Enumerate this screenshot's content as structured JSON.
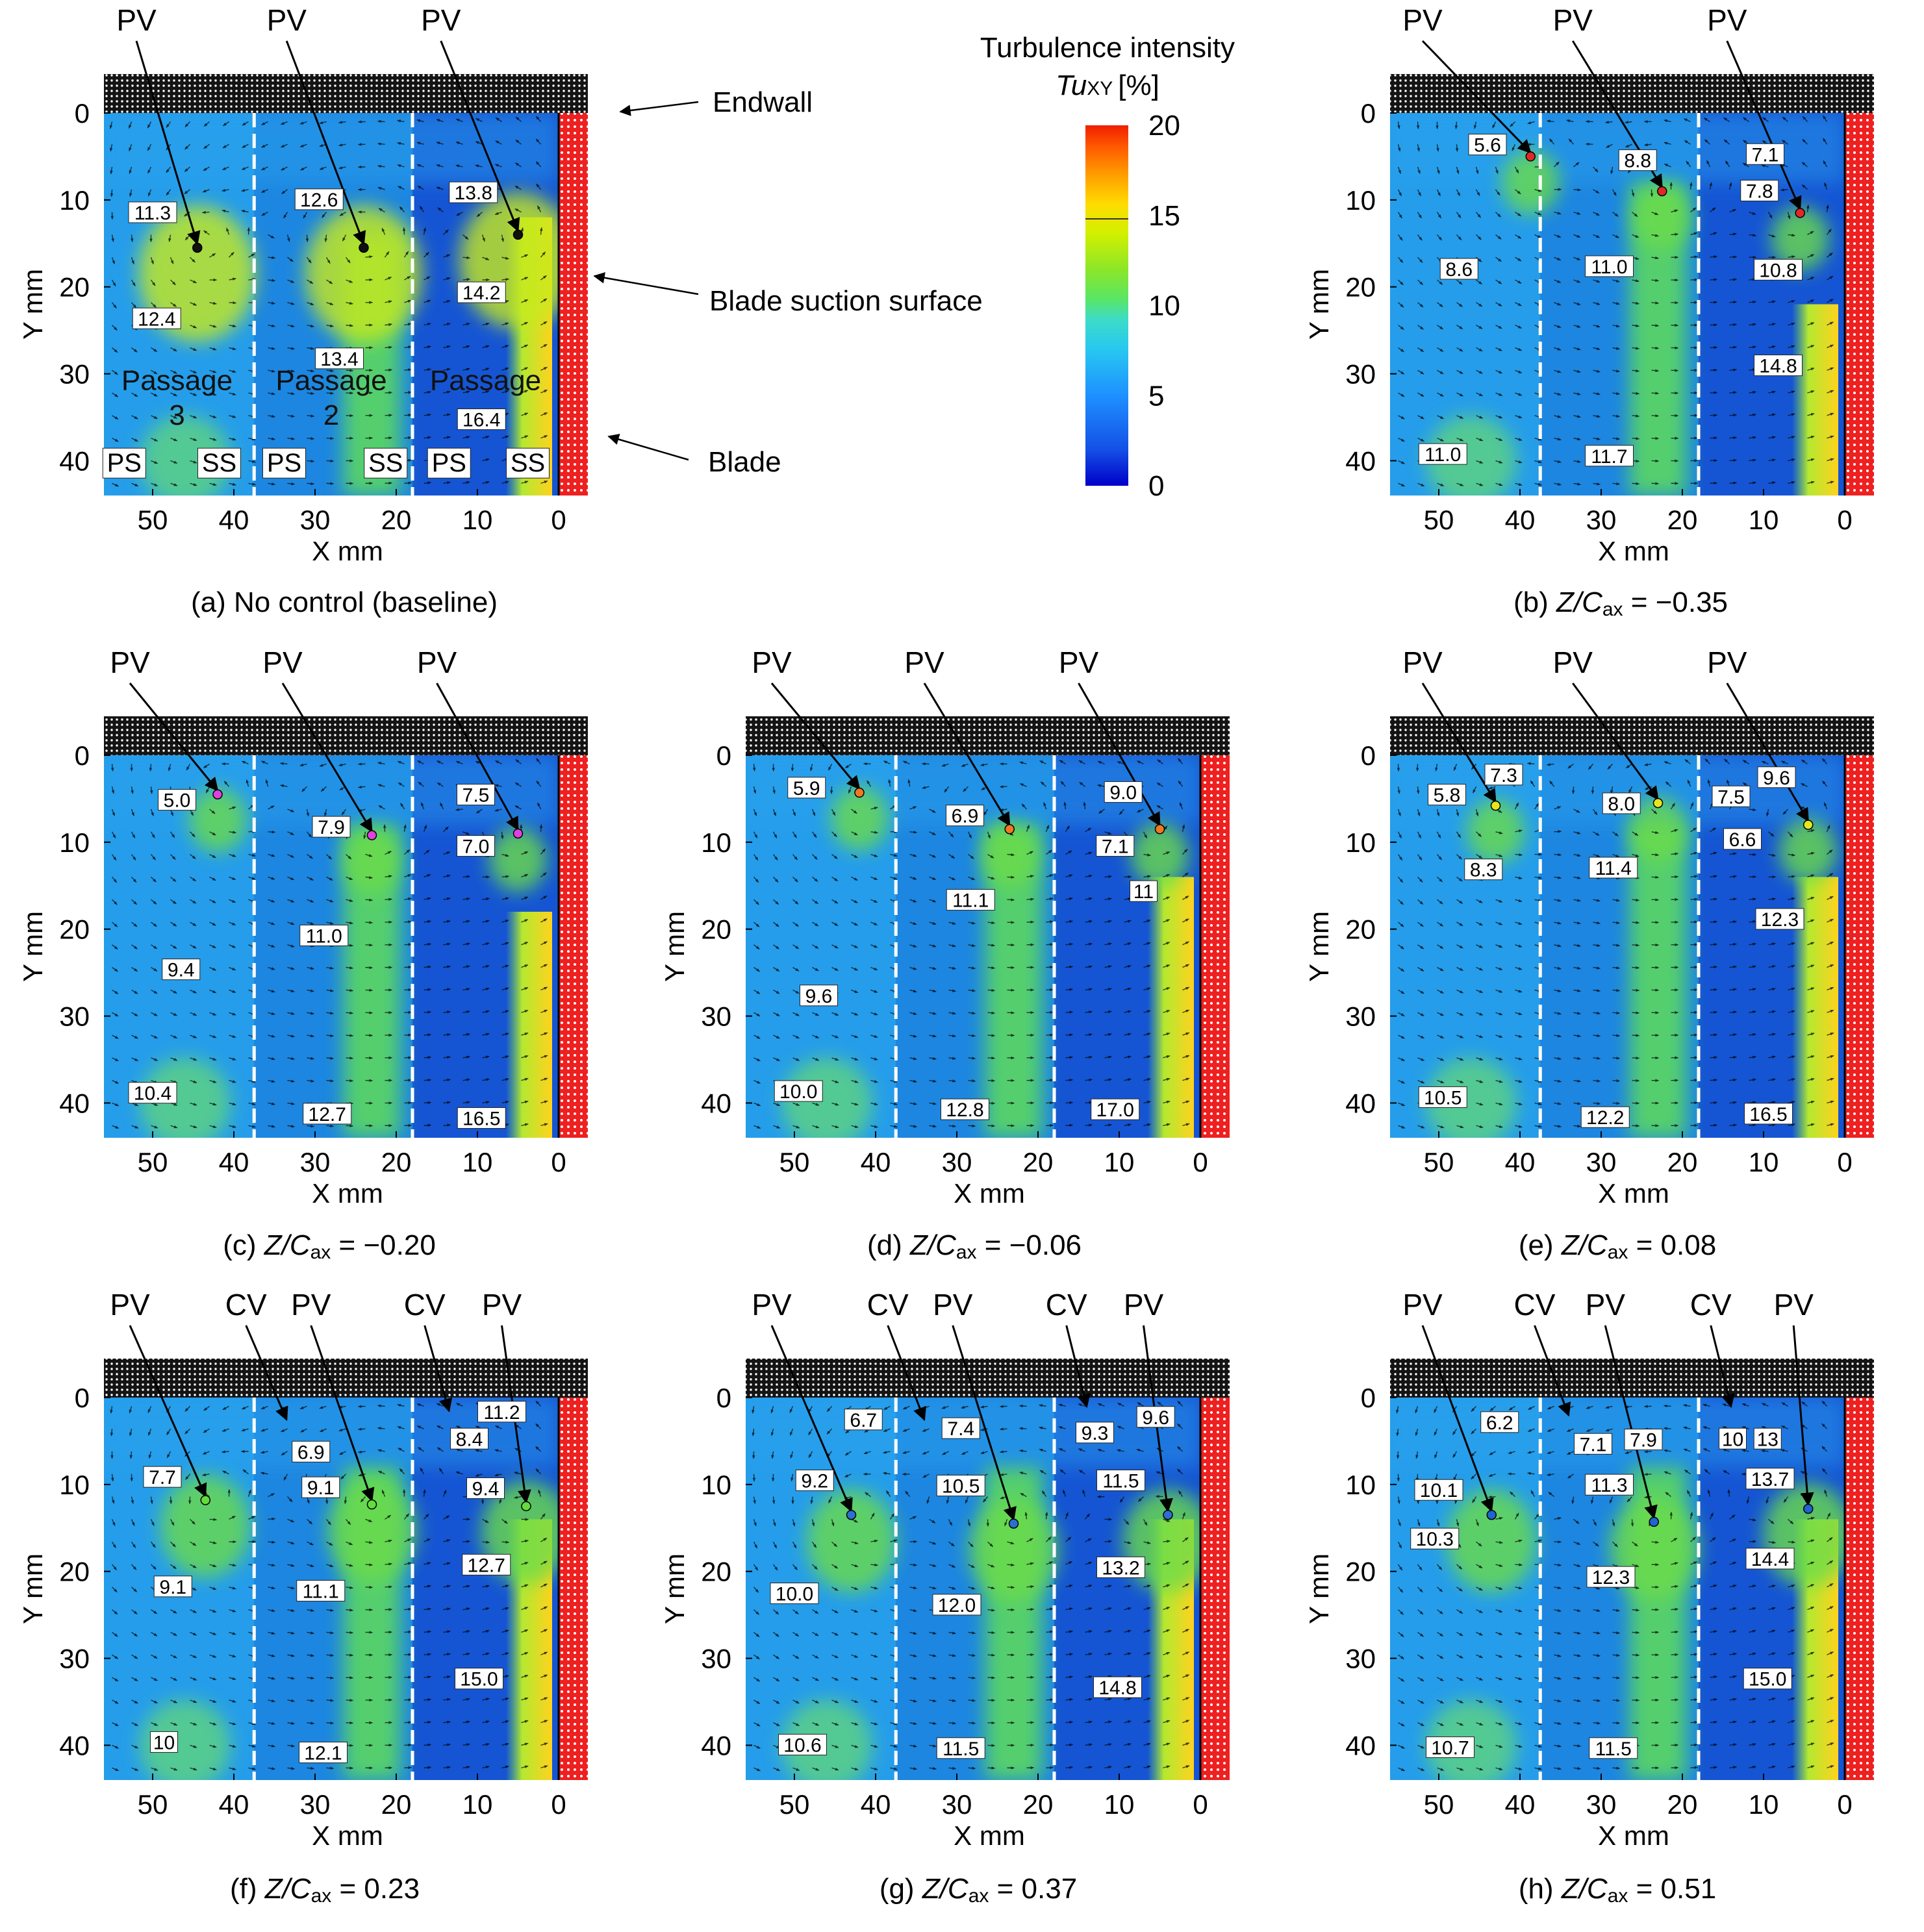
{
  "figure": {
    "axis_titles": {
      "x": "X mm",
      "y": "Y mm"
    },
    "x_ticks": [
      50,
      40,
      30,
      20,
      10,
      0
    ],
    "y_ticks": [
      0,
      10,
      20,
      30,
      40
    ],
    "colorbar": {
      "title_line1": "Turbulence intensity",
      "title_line2_symbol": "Tu",
      "title_line2_sub": "XY",
      "title_line2_unit": "[%]",
      "ticks": [
        20,
        15,
        10,
        5,
        0
      ],
      "range": [
        0,
        20
      ],
      "colors": [
        "#0000c8",
        "#1450e6",
        "#1e90ff",
        "#28c8f0",
        "#3cdcc8",
        "#5ae664",
        "#8ce628",
        "#d2f000",
        "#ffdc00",
        "#ffa000",
        "#ff5a00",
        "#f01e00"
      ]
    },
    "annotation_labels": {
      "endwall": "Endwall",
      "suction": "Blade suction surface",
      "blade": "Blade"
    },
    "colors": {
      "flow_blue": "#1878dc",
      "flow_deep": "#1240c8",
      "blade_red": "#ee2020",
      "endwall_black": "#141414"
    }
  },
  "chart_data": [
    {
      "type": "heatmap",
      "panel": "a",
      "caption": {
        "text": "(a) No control (baseline)"
      },
      "xlim": [
        56,
        0
      ],
      "ylim": [
        0,
        44
      ],
      "vortices": [
        {
          "name": "PV",
          "x": 44.5,
          "y": 15.5,
          "color": "#111111"
        },
        {
          "name": "PV",
          "x": 24,
          "y": 15.5,
          "color": "#111111"
        },
        {
          "name": "PV",
          "x": 5,
          "y": 14,
          "color": "#111111"
        }
      ],
      "values": [
        {
          "text": "11.3",
          "x": 50,
          "y": 11.5
        },
        {
          "text": "12.4",
          "x": 49.5,
          "y": 23.7
        },
        {
          "text": "12.6",
          "x": 29.5,
          "y": 10
        },
        {
          "text": "13.4",
          "x": 27,
          "y": 28.3
        },
        {
          "text": "13.8",
          "x": 10.5,
          "y": 9.2
        },
        {
          "text": "14.2",
          "x": 9.5,
          "y": 20.7
        },
        {
          "text": "16.4",
          "x": 9.5,
          "y": 35.3
        }
      ],
      "region_labels": [
        {
          "text": "Passage",
          "x": 47,
          "y": 30.8
        },
        {
          "text": "3",
          "x": 47,
          "y": 34.8
        },
        {
          "text": "Passage",
          "x": 28,
          "y": 30.8
        },
        {
          "text": "2",
          "x": 28,
          "y": 34.8
        },
        {
          "text": "Passage",
          "x": 9,
          "y": 30.8
        },
        {
          "text": "PS",
          "x": 53.5,
          "y": 40.8
        },
        {
          "text": "SS",
          "x": 41.8,
          "y": 40.8
        },
        {
          "text": "PS",
          "x": 33.8,
          "y": 40.8
        },
        {
          "text": "SS",
          "x": 21.3,
          "y": 40.8
        },
        {
          "text": "PS",
          "x": 13.5,
          "y": 40.8
        },
        {
          "text": "SS",
          "x": 3.8,
          "y": 40.8
        }
      ]
    },
    {
      "type": "heatmap",
      "panel": "b",
      "caption": {
        "prefix": "(b) ",
        "zc": "Z/C",
        "sub": "ax",
        "value": " = −0.35"
      },
      "xlim": [
        56,
        0
      ],
      "ylim": [
        0,
        44
      ],
      "vortices": [
        {
          "name": "PV",
          "x": 38.7,
          "y": 5,
          "color": "#e02828"
        },
        {
          "name": "PV",
          "x": 22.5,
          "y": 9,
          "color": "#e02828"
        },
        {
          "name": "PV",
          "x": 5.5,
          "y": 11.5,
          "color": "#e02828"
        }
      ],
      "values": [
        {
          "text": "5.6",
          "x": 44,
          "y": 3.7
        },
        {
          "text": "8.6",
          "x": 47.5,
          "y": 18
        },
        {
          "text": "11.0",
          "x": 49.5,
          "y": 39.3
        },
        {
          "text": "8.8",
          "x": 25.5,
          "y": 5.5
        },
        {
          "text": "11.0",
          "x": 29,
          "y": 17.7
        },
        {
          "text": "11.7",
          "x": 29,
          "y": 39.5
        },
        {
          "text": "7.1",
          "x": 9.8,
          "y": 4.8
        },
        {
          "text": "7.8",
          "x": 10.5,
          "y": 9
        },
        {
          "text": "10.8",
          "x": 8.2,
          "y": 18.1
        },
        {
          "text": "14.8",
          "x": 8.2,
          "y": 29.1
        }
      ]
    },
    {
      "type": "heatmap",
      "panel": "c",
      "caption": {
        "prefix": "(c) ",
        "zc": "Z/C",
        "sub": "ax",
        "value": " = −0.20"
      },
      "xlim": [
        56,
        0
      ],
      "ylim": [
        0,
        44
      ],
      "vortices": [
        {
          "name": "PV",
          "x": 42,
          "y": 4.5,
          "color": "#e040e0"
        },
        {
          "name": "PV",
          "x": 23,
          "y": 9.2,
          "color": "#e040e0"
        },
        {
          "name": "PV",
          "x": 5,
          "y": 9,
          "color": "#e040e0"
        }
      ],
      "values": [
        {
          "text": "5.0",
          "x": 47,
          "y": 5.2
        },
        {
          "text": "9.4",
          "x": 46.5,
          "y": 24.7
        },
        {
          "text": "10.4",
          "x": 50,
          "y": 38.9
        },
        {
          "text": "7.9",
          "x": 28,
          "y": 8.3
        },
        {
          "text": "11.0",
          "x": 28.9,
          "y": 20.8
        },
        {
          "text": "12.7",
          "x": 28.5,
          "y": 41.3
        },
        {
          "text": "7.5",
          "x": 10.2,
          "y": 4.6
        },
        {
          "text": "7.0",
          "x": 10.2,
          "y": 10.5
        },
        {
          "text": "16.5",
          "x": 9.5,
          "y": 41.8
        }
      ]
    },
    {
      "type": "heatmap",
      "panel": "d",
      "caption": {
        "prefix": "(d) ",
        "zc": "Z/C",
        "sub": "ax",
        "value": " = −0.06"
      },
      "xlim": [
        56,
        0
      ],
      "ylim": [
        0,
        44
      ],
      "vortices": [
        {
          "name": "PV",
          "x": 42,
          "y": 4.3,
          "color": "#f07820"
        },
        {
          "name": "PV",
          "x": 23.5,
          "y": 8.5,
          "color": "#f07820"
        },
        {
          "name": "PV",
          "x": 5,
          "y": 8.5,
          "color": "#f07820"
        }
      ],
      "values": [
        {
          "text": "5.9",
          "x": 48.5,
          "y": 3.8
        },
        {
          "text": "9.6",
          "x": 47,
          "y": 27.7
        },
        {
          "text": "10.0",
          "x": 49.5,
          "y": 38.7
        },
        {
          "text": "6.9",
          "x": 29,
          "y": 7
        },
        {
          "text": "11.1",
          "x": 28.3,
          "y": 16.7
        },
        {
          "text": "12.8",
          "x": 29,
          "y": 40.8
        },
        {
          "text": "9.0",
          "x": 9.5,
          "y": 4.3
        },
        {
          "text": "7.1",
          "x": 10.5,
          "y": 10.5
        },
        {
          "text": "11",
          "x": 7,
          "y": 15.7
        },
        {
          "text": "17.0",
          "x": 10.5,
          "y": 40.8
        }
      ]
    },
    {
      "type": "heatmap",
      "panel": "e",
      "caption": {
        "prefix": "(e) ",
        "zc": "Z/C",
        "sub": "ax",
        "value": " = 0.08"
      },
      "xlim": [
        56,
        0
      ],
      "ylim": [
        0,
        44
      ],
      "vortices": [
        {
          "name": "PV",
          "x": 43,
          "y": 5.8,
          "color": "#e6e61e"
        },
        {
          "name": "PV",
          "x": 23,
          "y": 5.5,
          "color": "#e6e61e"
        },
        {
          "name": "PV",
          "x": 4.5,
          "y": 8,
          "color": "#e6e61e"
        }
      ],
      "values": [
        {
          "text": "5.8",
          "x": 49,
          "y": 4.6
        },
        {
          "text": "7.3",
          "x": 42,
          "y": 2.3
        },
        {
          "text": "8.3",
          "x": 44.5,
          "y": 13.2
        },
        {
          "text": "10.5",
          "x": 49.5,
          "y": 39.4
        },
        {
          "text": "8.0",
          "x": 27.5,
          "y": 5.6
        },
        {
          "text": "11.4",
          "x": 28.5,
          "y": 13
        },
        {
          "text": "12.2",
          "x": 29.5,
          "y": 41.7
        },
        {
          "text": "7.5",
          "x": 14,
          "y": 4.8
        },
        {
          "text": "6.6",
          "x": 12.6,
          "y": 9.7
        },
        {
          "text": "9.6",
          "x": 8.4,
          "y": 2.6
        },
        {
          "text": "12.3",
          "x": 8,
          "y": 18.9
        },
        {
          "text": "16.5",
          "x": 9.4,
          "y": 41.3
        }
      ]
    },
    {
      "type": "heatmap",
      "panel": "f",
      "caption": {
        "prefix": "(f) ",
        "zc": "Z/C",
        "sub": "ax",
        "value": " = 0.23"
      },
      "xlim": [
        56,
        0
      ],
      "ylim": [
        0,
        44
      ],
      "vortices": [
        {
          "name": "PV",
          "x": 43.5,
          "y": 11.8,
          "color": "#64dc3c"
        },
        {
          "name": "PV",
          "x": 23,
          "y": 12.3,
          "color": "#64dc3c"
        },
        {
          "name": "PV",
          "x": 4,
          "y": 12.5,
          "color": "#64dc3c"
        }
      ],
      "cv_arrows": [
        {
          "name": "CV",
          "x": 33.5,
          "y": 3
        },
        {
          "name": "CV",
          "x": 13.5,
          "y": 2
        }
      ],
      "values": [
        {
          "text": "7.7",
          "x": 48.8,
          "y": 9.2
        },
        {
          "text": "9.1",
          "x": 47.5,
          "y": 21.8
        },
        {
          "text": "10",
          "x": 48.6,
          "y": 39.7
        },
        {
          "text": "6.9",
          "x": 30.5,
          "y": 6.3
        },
        {
          "text": "9.1",
          "x": 29.3,
          "y": 10.4
        },
        {
          "text": "11.1",
          "x": 29.3,
          "y": 22.3
        },
        {
          "text": "12.1",
          "x": 29,
          "y": 40.9
        },
        {
          "text": "8.4",
          "x": 11,
          "y": 4.8
        },
        {
          "text": "11.2",
          "x": 7,
          "y": 1.7
        },
        {
          "text": "9.4",
          "x": 9,
          "y": 10.5
        },
        {
          "text": "12.7",
          "x": 8.9,
          "y": 19.3
        },
        {
          "text": "15.0",
          "x": 9.8,
          "y": 32.4
        }
      ]
    },
    {
      "type": "heatmap",
      "panel": "g",
      "caption": {
        "prefix": "(g) ",
        "zc": "Z/C",
        "sub": "ax",
        "value": " = 0.37"
      },
      "xlim": [
        56,
        0
      ],
      "ylim": [
        0,
        44
      ],
      "vortices": [
        {
          "name": "PV",
          "x": 43,
          "y": 13.5,
          "color": "#2d6ed2"
        },
        {
          "name": "PV",
          "x": 23,
          "y": 14.5,
          "color": "#2d6ed2"
        },
        {
          "name": "PV",
          "x": 4,
          "y": 13.5,
          "color": "#2d6ed2"
        }
      ],
      "cv_arrows": [
        {
          "name": "CV",
          "x": 34,
          "y": 3
        },
        {
          "name": "CV",
          "x": 14,
          "y": 1.5
        }
      ],
      "values": [
        {
          "text": "9.2",
          "x": 47.5,
          "y": 9.6
        },
        {
          "text": "10.0",
          "x": 50,
          "y": 22.6
        },
        {
          "text": "10.6",
          "x": 49,
          "y": 40
        },
        {
          "text": "6.7",
          "x": 41.5,
          "y": 2.6
        },
        {
          "text": "7.4",
          "x": 29.5,
          "y": 3.6
        },
        {
          "text": "10.5",
          "x": 29.5,
          "y": 10.2
        },
        {
          "text": "12.0",
          "x": 30,
          "y": 23.9
        },
        {
          "text": "11.5",
          "x": 29.5,
          "y": 40.4
        },
        {
          "text": "9.3",
          "x": 13,
          "y": 4.1
        },
        {
          "text": "9.6",
          "x": 5.5,
          "y": 2.3
        },
        {
          "text": "11.5",
          "x": 9.8,
          "y": 9.6
        },
        {
          "text": "13.2",
          "x": 9.8,
          "y": 19.6
        },
        {
          "text": "14.8",
          "x": 10.2,
          "y": 33.4
        }
      ]
    },
    {
      "type": "heatmap",
      "panel": "h",
      "caption": {
        "prefix": "(h) ",
        "zc": "Z/C",
        "sub": "ax",
        "value": " = 0.51"
      },
      "xlim": [
        56,
        0
      ],
      "ylim": [
        0,
        44
      ],
      "vortices": [
        {
          "name": "PV",
          "x": 43.5,
          "y": 13.5,
          "color": "#1e64d2"
        },
        {
          "name": "PV",
          "x": 23.5,
          "y": 14.3,
          "color": "#1e64d2"
        },
        {
          "name": "PV",
          "x": 4.5,
          "y": 12.8,
          "color": "#1e64d2"
        }
      ],
      "cv_arrows": [
        {
          "name": "CV",
          "x": 34,
          "y": 2.5
        },
        {
          "name": "CV",
          "x": 14,
          "y": 1.5
        }
      ],
      "values": [
        {
          "text": "10.1",
          "x": 50,
          "y": 10.7
        },
        {
          "text": "10.3",
          "x": 50.5,
          "y": 16.3
        },
        {
          "text": "10.7",
          "x": 48.6,
          "y": 40.3
        },
        {
          "text": "6.2",
          "x": 42.5,
          "y": 2.9
        },
        {
          "text": "7.1",
          "x": 31,
          "y": 5.4
        },
        {
          "text": "7.9",
          "x": 24.8,
          "y": 4.9
        },
        {
          "text": "11.3",
          "x": 29,
          "y": 10.1
        },
        {
          "text": "12.3",
          "x": 28.8,
          "y": 20.7
        },
        {
          "text": "11.5",
          "x": 28.5,
          "y": 40.4
        },
        {
          "text": "10",
          "x": 13.8,
          "y": 4.8
        },
        {
          "text": "13",
          "x": 9.5,
          "y": 4.8
        },
        {
          "text": "13.7",
          "x": 9.2,
          "y": 9.4
        },
        {
          "text": "14.4",
          "x": 9.2,
          "y": 18.6
        },
        {
          "text": "15.0",
          "x": 9.5,
          "y": 32.4
        }
      ]
    }
  ]
}
